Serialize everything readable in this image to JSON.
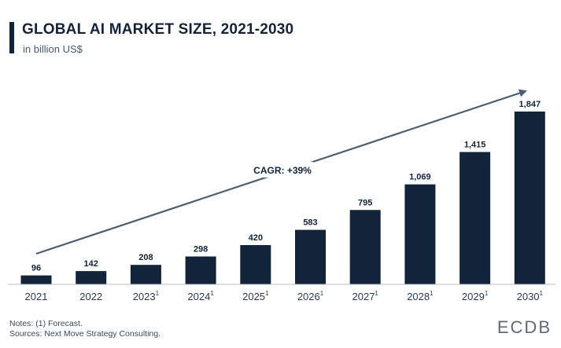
{
  "header": {
    "title": "GLOBAL AI MARKET SIZE, 2021-2030",
    "subtitle": "in billion US$"
  },
  "chart_data": {
    "type": "bar",
    "categories": [
      "2021",
      "2022",
      "2023",
      "2024",
      "2025",
      "2026",
      "2027",
      "2028",
      "2029",
      "2030"
    ],
    "category_superscripts": [
      "",
      "",
      "1",
      "1",
      "1",
      "1",
      "1",
      "1",
      "1",
      "1"
    ],
    "values": [
      96,
      142,
      208,
      298,
      420,
      583,
      795,
      1069,
      1415,
      1847
    ],
    "value_labels": [
      "96",
      "142",
      "208",
      "298",
      "420",
      "583",
      "795",
      "1,069",
      "1,415",
      "1,847"
    ],
    "ylim": [
      0,
      1847
    ],
    "annotation": "CAGR: +39%",
    "bar_color": "#12243a",
    "grid": false
  },
  "footer": {
    "notes": "Notes: (1) Forecast.",
    "sources": "Sources: Next Move Strategy Consulting.",
    "logo": "ECDB"
  }
}
